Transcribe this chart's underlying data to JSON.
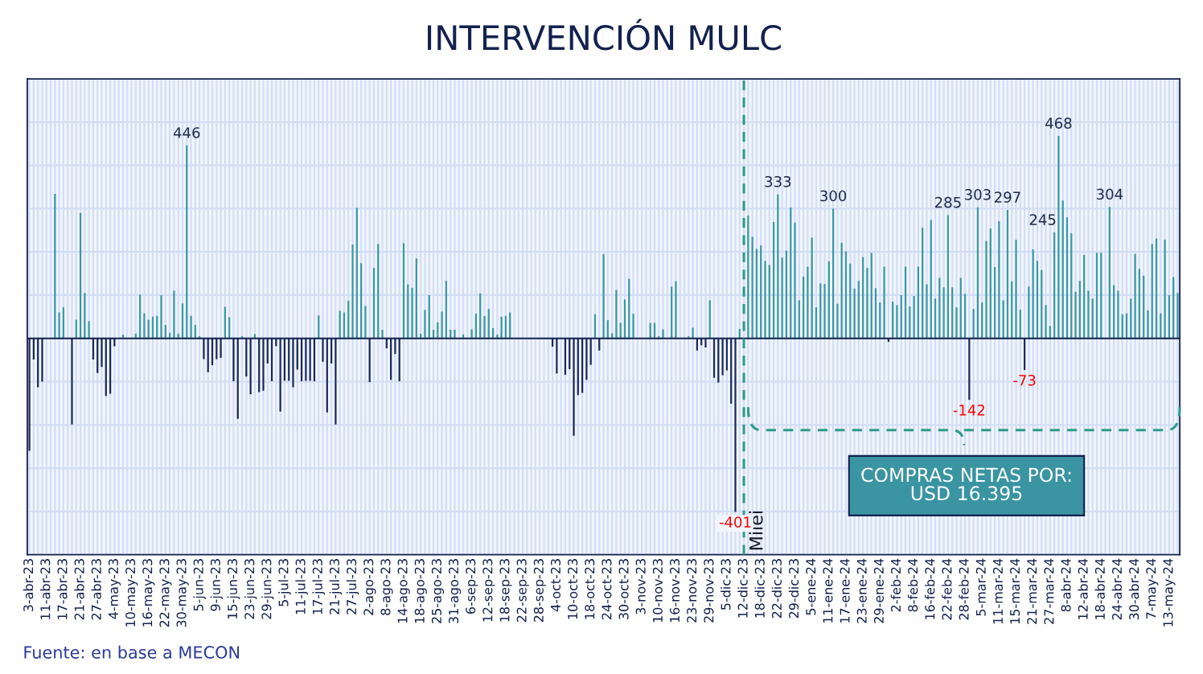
{
  "chart_data": {
    "type": "bar",
    "title": "INTERVENCIÓN MULC",
    "categories": [
      "3-abr-23",
      null,
      null,
      null,
      "11-abr-23",
      null,
      null,
      null,
      "17-abr-23",
      null,
      null,
      null,
      "21-abr-23",
      null,
      null,
      null,
      "27-abr-23",
      null,
      null,
      null,
      "4-may-23",
      null,
      null,
      null,
      "10-may-23",
      null,
      null,
      null,
      "16-may-23",
      null,
      null,
      null,
      "22-may-23",
      null,
      null,
      null,
      "30-may-23",
      null,
      null,
      null,
      "5-jun-23",
      null,
      null,
      null,
      "9-jun-23",
      null,
      null,
      null,
      "15-jun-23",
      null,
      null,
      null,
      "23-jun-23",
      null,
      null,
      null,
      "29-jun-23",
      null,
      null,
      null,
      "5-jul-23",
      null,
      null,
      null,
      "11-jul-23",
      null,
      null,
      null,
      "17-jul-23",
      null,
      null,
      null,
      "21-jul-23",
      null,
      null,
      null,
      "27-jul-23",
      null,
      null,
      null,
      "2-ago-23",
      null,
      null,
      null,
      "8-ago-23",
      null,
      null,
      null,
      "14-ago-23",
      null,
      null,
      null,
      "18-ago-23",
      null,
      null,
      null,
      "25-ago-23",
      null,
      null,
      null,
      "31-ago-23",
      null,
      null,
      null,
      "6-sep-23",
      null,
      null,
      null,
      "12-sep-23",
      null,
      null,
      null,
      "18-sep-23",
      null,
      null,
      null,
      "22-sep-23",
      null,
      null,
      null,
      "28-sep-23",
      null,
      null,
      null,
      "4-oct-23",
      null,
      null,
      null,
      "10-oct-23",
      null,
      null,
      null,
      "18-oct-23",
      null,
      null,
      null,
      "24-oct-23",
      null,
      null,
      null,
      "30-oct-23",
      null,
      null,
      null,
      "3-nov-23",
      null,
      null,
      null,
      "10-nov-23",
      null,
      null,
      null,
      "16-nov-23",
      null,
      null,
      null,
      "23-nov-23",
      null,
      null,
      null,
      "29-nov-23",
      null,
      null,
      null,
      "5-dic-23",
      null,
      null,
      null,
      "12-dic-23",
      null,
      null,
      null,
      "18-dic-23",
      null,
      null,
      null,
      "22-dic-23",
      null,
      null,
      null,
      "29-dic-23",
      null,
      null,
      null,
      "5-ene-24",
      null,
      null,
      null,
      "11-ene-24",
      null,
      null,
      null,
      "17-ene-24",
      null,
      null,
      null,
      "23-ene-24",
      null,
      null,
      null,
      "29-ene-24",
      null,
      null,
      null,
      "2-feb-24",
      null,
      null,
      null,
      "8-feb-24",
      null,
      null,
      null,
      "16-feb-24",
      null,
      null,
      null,
      "22-feb-24",
      null,
      null,
      null,
      "28-feb-24",
      null,
      null,
      null,
      "5-mar-24",
      null,
      null,
      null,
      "11-mar-24",
      null,
      null,
      null,
      "15-mar-24",
      null,
      null,
      null,
      "21-mar-24",
      null,
      null,
      null,
      "27-mar-24",
      null,
      null,
      null,
      "8-abr-24",
      null,
      null,
      null,
      "12-abr-24",
      null,
      null,
      null,
      "18-abr-24",
      null,
      null,
      null,
      "24-abr-24",
      null,
      null,
      null,
      "30-abr-24",
      null,
      null,
      null,
      "7-may-24",
      null,
      null,
      null,
      "13-may-24",
      null,
      null
    ],
    "series": [
      {
        "color": "#3b98a5",
        "values": [
          null,
          null,
          null,
          null,
          0,
          0,
          334,
          60,
          72,
          0,
          null,
          43,
          290,
          105,
          40,
          null,
          null,
          null,
          null,
          null,
          null,
          0,
          9,
          0,
          0,
          11,
          101,
          58,
          43,
          50,
          52,
          100,
          31,
          13,
          110,
          11,
          81,
          446,
          52,
          31,
          5,
          null,
          null,
          null,
          null,
          null,
          73,
          49,
          null,
          null,
          5,
          null,
          null,
          10,
          null,
          null,
          null,
          null,
          null,
          null,
          null,
          null,
          null,
          null,
          null,
          null,
          null,
          null,
          53,
          null,
          null,
          null,
          null,
          64,
          60,
          87,
          217,
          302,
          174,
          75,
          null,
          163,
          218,
          20,
          null,
          null,
          null,
          null,
          220,
          125,
          117,
          185,
          11,
          66,
          100,
          20,
          37,
          62,
          133,
          20,
          20,
          0,
          9,
          1,
          21,
          57,
          104,
          52,
          68,
          24,
          9,
          50,
          52,
          60,
          0,
          0,
          0,
          0,
          null,
          0,
          0,
          0,
          0,
          null,
          null,
          0,
          null,
          null,
          null,
          null,
          null,
          null,
          null,
          56,
          null,
          195,
          42,
          12,
          112,
          36,
          90,
          138,
          57,
          0,
          0,
          0,
          36,
          36,
          5,
          21,
          0,
          120,
          132,
          0,
          0,
          5,
          25,
          null,
          null,
          null,
          88,
          null,
          null,
          null,
          null,
          null,
          null,
          22,
          null,
          284,
          235,
          207,
          215,
          179,
          170,
          269,
          333,
          187,
          203,
          303,
          268,
          88,
          143,
          166,
          233,
          72,
          127,
          126,
          178,
          300,
          80,
          221,
          201,
          173,
          115,
          133,
          188,
          163,
          198,
          116,
          83,
          166,
          null,
          85,
          77,
          100,
          166,
          74,
          98,
          166,
          256,
          125,
          274,
          92,
          140,
          118,
          285,
          118,
          72,
          140,
          103,
          null,
          68,
          303,
          83,
          225,
          254,
          165,
          271,
          88,
          297,
          132,
          228,
          66,
          null,
          120,
          206,
          179,
          158,
          77,
          29,
          245,
          468,
          319,
          280,
          243,
          108,
          133,
          193,
          110,
          92,
          198,
          198,
          0,
          304,
          123,
          110,
          56,
          58,
          92,
          195,
          161,
          145,
          65,
          218,
          231,
          58,
          228,
          100,
          142,
          105
        ],
        "value_labels": [
          null,
          null,
          null,
          null,
          null,
          null,
          null,
          null,
          null,
          null,
          null,
          null,
          null,
          null,
          null,
          null,
          null,
          null,
          null,
          null,
          null,
          null,
          null,
          null,
          null,
          null,
          null,
          null,
          null,
          null,
          null,
          null,
          null,
          null,
          null,
          null,
          null,
          "446",
          null,
          null,
          null,
          null,
          null,
          null,
          null,
          null,
          null,
          null,
          null,
          null,
          null,
          null,
          null,
          null,
          null,
          null,
          null,
          null,
          null,
          null,
          null,
          null,
          null,
          null,
          null,
          null,
          null,
          null,
          null,
          null,
          null,
          null,
          null,
          null,
          null,
          null,
          null,
          null,
          null,
          null,
          null,
          null,
          null,
          null,
          null,
          null,
          null,
          null,
          null,
          null,
          null,
          null,
          null,
          null,
          null,
          null,
          null,
          null,
          null,
          null,
          null,
          null,
          null,
          null,
          null,
          null,
          null,
          null,
          null,
          null,
          null,
          null,
          null,
          null,
          null,
          null,
          null,
          null,
          null,
          null,
          null,
          null,
          null,
          null,
          null,
          null,
          null,
          null,
          null,
          null,
          null,
          null,
          null,
          null,
          null,
          null,
          null,
          null,
          null,
          null,
          null,
          null,
          null,
          null,
          null,
          null,
          null,
          null,
          null,
          null,
          null,
          null,
          null,
          null,
          null,
          null,
          null,
          null,
          null,
          null,
          null,
          null,
          null,
          null,
          null,
          null,
          null,
          null,
          null,
          null,
          null,
          null,
          null,
          null,
          null,
          null,
          "333",
          null,
          null,
          null,
          null,
          null,
          null,
          null,
          null,
          null,
          null,
          null,
          null,
          "300",
          null,
          null,
          null,
          null,
          null,
          null,
          null,
          null,
          null,
          null,
          null,
          null,
          null,
          null,
          null,
          null,
          null,
          null,
          null,
          null,
          null,
          null,
          null,
          null,
          null,
          null,
          "285",
          null,
          null,
          null,
          null,
          null,
          null,
          "303",
          null,
          null,
          null,
          null,
          null,
          null,
          "297",
          null,
          null,
          null,
          null,
          null,
          null,
          null,
          null,
          null,
          null,
          "245",
          "468",
          null,
          null,
          null,
          null,
          null,
          null,
          null,
          null,
          null,
          null,
          null,
          "304",
          null,
          null,
          null,
          null,
          null,
          null,
          null,
          null,
          null,
          null,
          null,
          null,
          null,
          null,
          null,
          null
        ]
      },
      {
        "color": "#1b2a5c",
        "values": [
          -260,
          -49,
          -113,
          -100,
          null,
          null,
          null,
          null,
          null,
          null,
          -199,
          null,
          null,
          null,
          null,
          -49,
          -80,
          -66,
          -133,
          -128,
          -18,
          null,
          null,
          null,
          null,
          null,
          null,
          null,
          null,
          null,
          null,
          null,
          null,
          null,
          null,
          null,
          null,
          null,
          null,
          null,
          null,
          -48,
          -78,
          -62,
          -48,
          -45,
          null,
          null,
          -99,
          -186,
          null,
          -88,
          -129,
          null,
          -124,
          -121,
          -58,
          -99,
          -18,
          -169,
          -98,
          -98,
          -113,
          -72,
          -99,
          -98,
          -98,
          -99,
          null,
          -54,
          -171,
          -58,
          -199,
          null,
          null,
          null,
          null,
          null,
          null,
          null,
          -101,
          null,
          null,
          null,
          -23,
          -96,
          -36,
          -99,
          null,
          null,
          null,
          null,
          null,
          null,
          null,
          null,
          null,
          null,
          null,
          null,
          null,
          null,
          null,
          null,
          null,
          null,
          null,
          null,
          null,
          null,
          null,
          null,
          null,
          null,
          null,
          null,
          null,
          null,
          null,
          null,
          null,
          null,
          null,
          -19,
          -81,
          null,
          -84,
          -71,
          -225,
          -131,
          -126,
          -96,
          -61,
          null,
          -28,
          null,
          null,
          null,
          null,
          null,
          null,
          null,
          null,
          null,
          null,
          null,
          null,
          null,
          null,
          null,
          null,
          null,
          null,
          null,
          null,
          null,
          null,
          -28,
          -16,
          -21,
          null,
          -91,
          -102,
          -85,
          -74,
          -151,
          -401,
          null,
          null,
          null,
          null,
          null,
          null,
          null,
          null,
          null,
          null,
          null,
          null,
          null,
          null,
          null,
          null,
          null,
          null,
          null,
          null,
          null,
          null,
          null,
          null,
          null,
          null,
          null,
          null,
          null,
          null,
          null,
          null,
          null,
          null,
          null,
          -8,
          null,
          null,
          null,
          null,
          null,
          null,
          null,
          null,
          null,
          null,
          null,
          null,
          null,
          null,
          null,
          null,
          null,
          null,
          -142,
          null,
          null,
          null,
          null,
          null,
          null,
          null,
          null,
          null,
          null,
          null,
          null,
          -73,
          null,
          null,
          null,
          null,
          null,
          null,
          null,
          null,
          null,
          null,
          null,
          null,
          null,
          null,
          null,
          null,
          null,
          null,
          null,
          null,
          null,
          null,
          null,
          null,
          null,
          null,
          null,
          null,
          null,
          null,
          null,
          null,
          null,
          null,
          null,
          null
        ],
        "value_labels": [
          null,
          null,
          null,
          null,
          null,
          null,
          null,
          null,
          null,
          null,
          null,
          null,
          null,
          null,
          null,
          null,
          null,
          null,
          null,
          null,
          null,
          null,
          null,
          null,
          null,
          null,
          null,
          null,
          null,
          null,
          null,
          null,
          null,
          null,
          null,
          null,
          null,
          null,
          null,
          null,
          null,
          null,
          null,
          null,
          null,
          null,
          null,
          null,
          null,
          null,
          null,
          null,
          null,
          null,
          null,
          null,
          null,
          null,
          null,
          null,
          null,
          null,
          null,
          null,
          null,
          null,
          null,
          null,
          null,
          null,
          null,
          null,
          null,
          null,
          null,
          null,
          null,
          null,
          null,
          null,
          null,
          null,
          null,
          null,
          null,
          null,
          null,
          null,
          null,
          null,
          null,
          null,
          null,
          null,
          null,
          null,
          null,
          null,
          null,
          null,
          null,
          null,
          null,
          null,
          null,
          null,
          null,
          null,
          null,
          null,
          null,
          null,
          null,
          null,
          null,
          null,
          null,
          null,
          null,
          null,
          null,
          null,
          null,
          null,
          null,
          null,
          null,
          null,
          null,
          null,
          null,
          null,
          null,
          null,
          null,
          null,
          null,
          null,
          null,
          null,
          null,
          null,
          null,
          null,
          null,
          null,
          null,
          null,
          null,
          null,
          null,
          null,
          null,
          null,
          null,
          null,
          null,
          null,
          null,
          null,
          null,
          null,
          null,
          null,
          null,
          null,
          "-401",
          null,
          null,
          null,
          null,
          null,
          null,
          null,
          null,
          null,
          null,
          null,
          null,
          null,
          null,
          null,
          null,
          null,
          null,
          null,
          null,
          null,
          null,
          null,
          null,
          null,
          null,
          null,
          null,
          null,
          null,
          null,
          null,
          null,
          null,
          null,
          null,
          null,
          null,
          null,
          null,
          null,
          null,
          null,
          null,
          null,
          null,
          null,
          null,
          null,
          null,
          null,
          null,
          null,
          null,
          "-142",
          null,
          null,
          null,
          null,
          null,
          null,
          null,
          null,
          null,
          null,
          null,
          null,
          "-73",
          null,
          null,
          null,
          null,
          null,
          null,
          null,
          null,
          null,
          null,
          null,
          null,
          null,
          null,
          null,
          null,
          null,
          null,
          null,
          null,
          null,
          null,
          null,
          null,
          null,
          null,
          null,
          null,
          null,
          null,
          null,
          null,
          null,
          null,
          null,
          null
        ]
      }
    ],
    "ylim": [
      -500,
      600
    ],
    "yticks": [
      {
        "value": -500,
        "label": null
      },
      {
        "value": -400,
        "label": null
      },
      {
        "value": -300,
        "label": null
      },
      {
        "value": -200,
        "label": null
      },
      {
        "value": -100,
        "label": null
      },
      {
        "value": 0,
        "label": null
      },
      {
        "value": 100,
        "label": null
      },
      {
        "value": 200,
        "label": null
      },
      {
        "value": 300,
        "label": null
      },
      {
        "value": 400,
        "label": null
      },
      {
        "value": 500,
        "label": null
      },
      {
        "value": 600,
        "label": null
      }
    ],
    "tick_labels": "x",
    "grid": true,
    "ref_lines": [
      {
        "axis": "x",
        "value": "12-dic-23",
        "label": "Milei",
        "color": "#2e9a8c",
        "line_style": "dashed"
      }
    ],
    "annotations": [
      "COMPRAS NETAS POR:\nUSD 16.395",
      "Fuente: en base a MECON"
    ]
  }
}
